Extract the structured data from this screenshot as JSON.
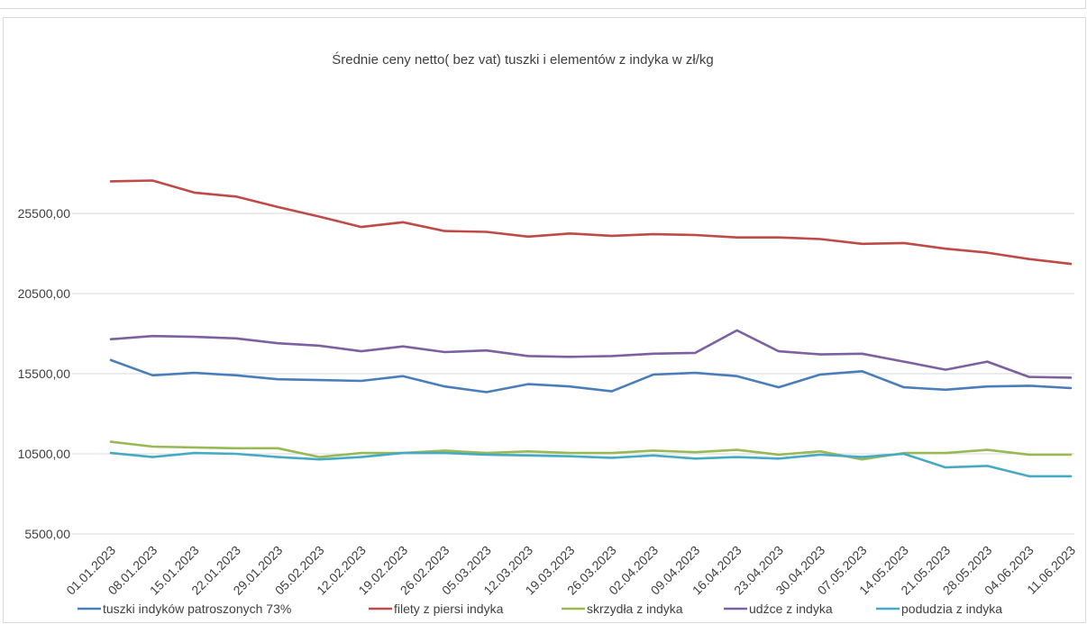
{
  "chart_data": {
    "type": "line",
    "title": "Średnie ceny netto( bez vat) tuszki i elementów z indyka w zł/kg",
    "xlabel": "",
    "ylabel": "",
    "ylim": [
      5500,
      25500
    ],
    "yticks": [
      "5500,00",
      "10500,00",
      "15500,00",
      "20500,00",
      "25500,00"
    ],
    "grid": true,
    "legend_position": "bottom",
    "categories": [
      "01.01.2023",
      "08.01.2023",
      "15.01.2023",
      "22.01.2023",
      "29.01.2023",
      "05.02.2023",
      "12.02.2023",
      "19.02.2023",
      "26.02.2023",
      "05.03.2023",
      "12.03.2023",
      "19.03.2023",
      "26.03.2023",
      "02.04.2023",
      "09.04.2023",
      "16.04.2023",
      "23.04.2023",
      "30.04.2023",
      "07.05.2023",
      "14.05.2023",
      "21.05.2023",
      "28.05.2023",
      "04.06.2023",
      "11.06.2023"
    ],
    "series": [
      {
        "name": "tuszki indyków patroszonych 73%",
        "color": "#4a7ebb",
        "values": [
          16350,
          15400,
          15550,
          15400,
          15150,
          15100,
          15050,
          15350,
          14700,
          14350,
          14850,
          14700,
          14400,
          15450,
          15550,
          15350,
          14650,
          15450,
          15650,
          14650,
          14500,
          14700,
          14750,
          14600
        ]
      },
      {
        "name": "filety z piersi indyka",
        "color": "#be4b48",
        "values": [
          27500,
          27550,
          26800,
          26550,
          25900,
          25300,
          24650,
          24950,
          24400,
          24350,
          24050,
          24250,
          24100,
          24200,
          24150,
          24000,
          24000,
          23900,
          23600,
          23650,
          23300,
          23050,
          22650,
          22350
        ]
      },
      {
        "name": "skrzydła z indyka",
        "color": "#98b954",
        "values": [
          11250,
          10950,
          10900,
          10850,
          10850,
          10300,
          10550,
          10550,
          10700,
          10550,
          10650,
          10550,
          10550,
          10700,
          10600,
          10750,
          10450,
          10650,
          10150,
          10550,
          10550,
          10750,
          10450,
          10450
        ]
      },
      {
        "name": "udźce z indyka",
        "color": "#7d60a0",
        "values": [
          17650,
          17850,
          17800,
          17700,
          17400,
          17250,
          16900,
          17200,
          16850,
          16950,
          16600,
          16550,
          16600,
          16750,
          16800,
          18200,
          16900,
          16700,
          16750,
          16250,
          15750,
          16250,
          15300,
          15250
        ]
      },
      {
        "name": "podudzia z indyka",
        "color": "#46aac5",
        "values": [
          10550,
          10300,
          10550,
          10500,
          10300,
          10150,
          10300,
          10550,
          10550,
          10450,
          10400,
          10350,
          10250,
          10400,
          10200,
          10300,
          10200,
          10450,
          10300,
          10500,
          9650,
          9750,
          9100,
          9100
        ]
      }
    ]
  }
}
